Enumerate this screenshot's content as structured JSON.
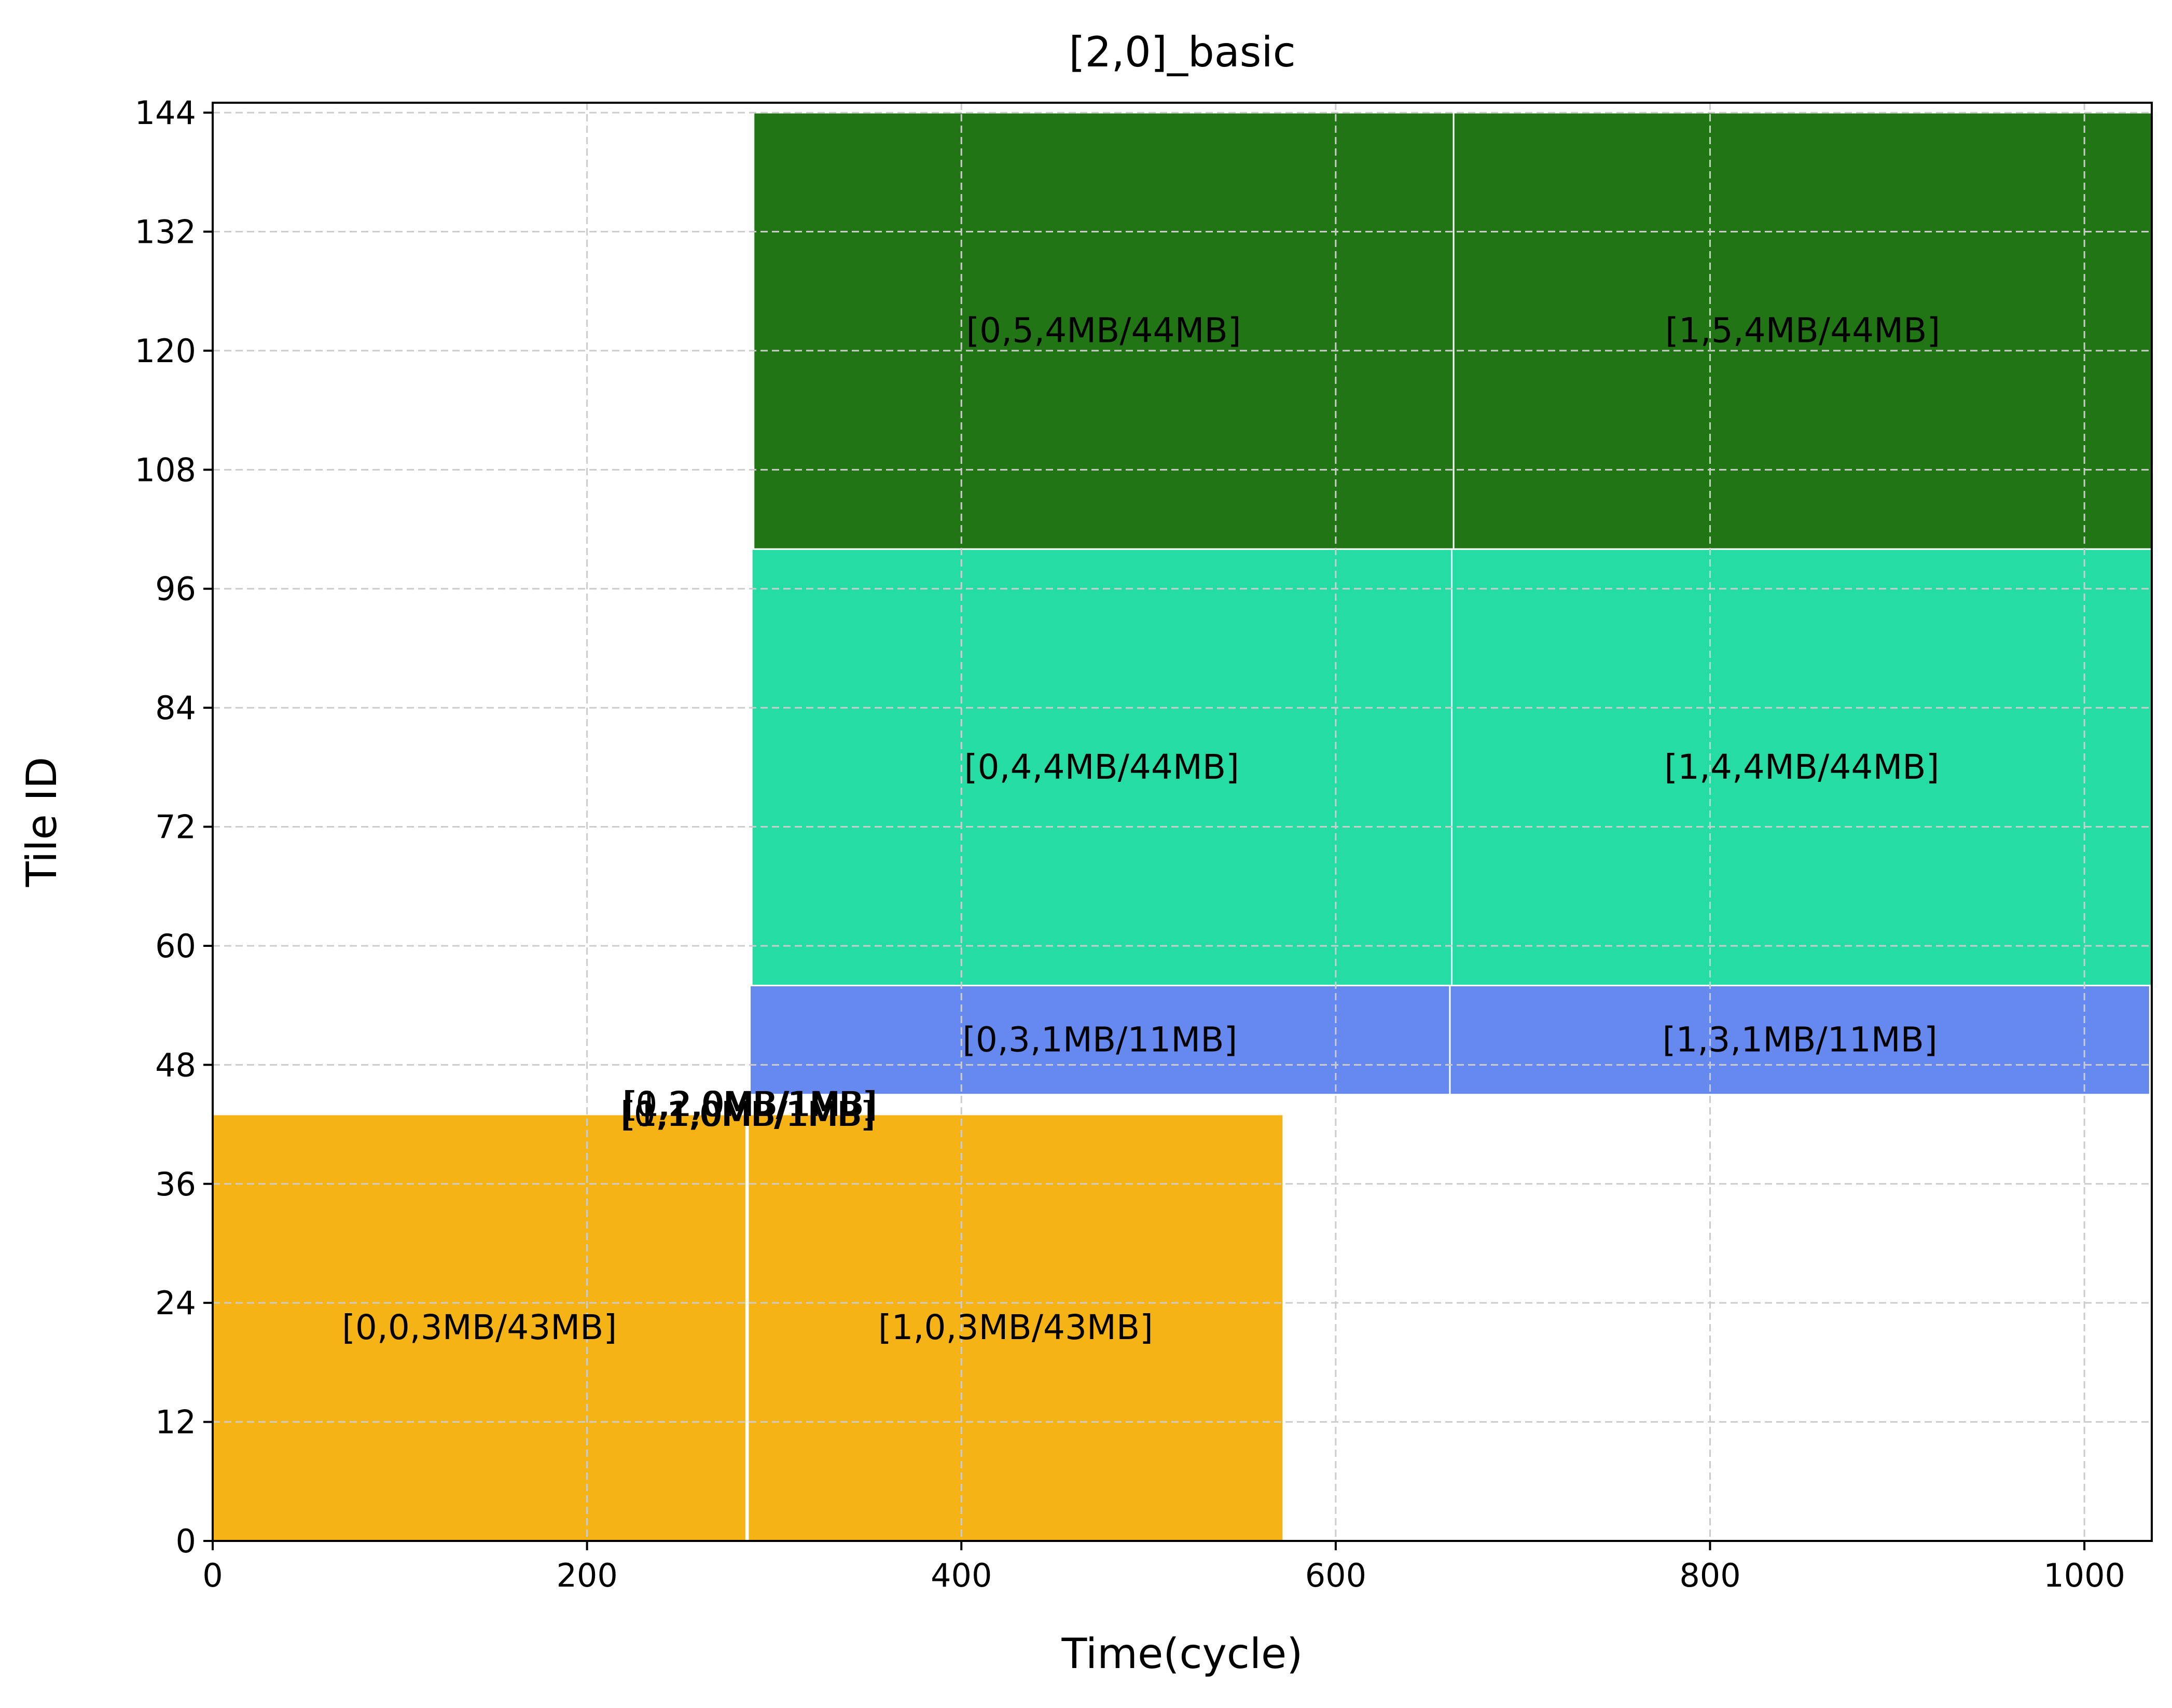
{
  "chart_data": {
    "type": "bar",
    "subtype": "horizontal-timeline-blocks",
    "title": "[2,0]_basic",
    "xlabel": "Time(cycle)",
    "ylabel": "Tile ID",
    "xlim": [
      0,
      1036
    ],
    "ylim": [
      0,
      145
    ],
    "xticks": [
      0,
      200,
      400,
      600,
      800,
      1000
    ],
    "yticks": [
      0,
      12,
      24,
      36,
      48,
      60,
      72,
      84,
      96,
      108,
      120,
      132,
      144
    ],
    "grid": true,
    "series": [
      {
        "name": "0",
        "color": "#f5b316"
      },
      {
        "name": "1",
        "color": "#efbbbb"
      },
      {
        "name": "2",
        "color": "#80c080"
      },
      {
        "name": "3",
        "color": "#6689f0"
      },
      {
        "name": "4",
        "color": "#25dca3"
      },
      {
        "name": "5",
        "color": "#217514"
      }
    ],
    "blocks": [
      {
        "label": "[0,0,3MB/43MB]",
        "series": "0",
        "x_start": 0,
        "x_end": 285,
        "y_start": 0,
        "y_end": 43,
        "color": "#f5b316"
      },
      {
        "label": "[1,0,3MB/43MB]",
        "series": "0",
        "x_start": 286,
        "x_end": 572,
        "y_start": 0,
        "y_end": 43,
        "color": "#f5b316"
      },
      {
        "label": "[0,1,0MB/1MB]",
        "series": "1",
        "x_start": 285,
        "x_end": 286,
        "y_start": 43,
        "y_end": 44,
        "color": "#efbbbb"
      },
      {
        "label": "[1,1,0MB/1MB]",
        "series": "1",
        "x_start": 286,
        "x_end": 287,
        "y_start": 43,
        "y_end": 44,
        "color": "#efbbbb"
      },
      {
        "label": "[0,2,0MB/1MB]",
        "series": "2",
        "x_start": 286,
        "x_end": 287,
        "y_start": 44,
        "y_end": 45,
        "color": "#80c080"
      },
      {
        "label": "[1,2,0MB/1MB]",
        "series": "2",
        "x_start": 287,
        "x_end": 288,
        "y_start": 44,
        "y_end": 45,
        "color": "#80c080"
      },
      {
        "label": "[0,3,1MB/11MB]",
        "series": "3",
        "x_start": 287,
        "x_end": 661,
        "y_start": 45,
        "y_end": 56,
        "color": "#6689f0"
      },
      {
        "label": "[1,3,1MB/11MB]",
        "series": "3",
        "x_start": 661,
        "x_end": 1035,
        "y_start": 45,
        "y_end": 56,
        "color": "#6689f0"
      },
      {
        "label": "[0,4,4MB/44MB]",
        "series": "4",
        "x_start": 288,
        "x_end": 662,
        "y_start": 56,
        "y_end": 100,
        "color": "#25dca3"
      },
      {
        "label": "[1,4,4MB/44MB]",
        "series": "4",
        "x_start": 662,
        "x_end": 1036,
        "y_start": 56,
        "y_end": 100,
        "color": "#25dca3"
      },
      {
        "label": "[0,5,4MB/44MB]",
        "series": "5",
        "x_start": 289,
        "x_end": 663,
        "y_start": 100,
        "y_end": 144,
        "color": "#217514"
      },
      {
        "label": "[1,5,4MB/44MB]",
        "series": "5",
        "x_start": 663,
        "x_end": 1036,
        "y_start": 100,
        "y_end": 144,
        "color": "#217514"
      }
    ]
  }
}
